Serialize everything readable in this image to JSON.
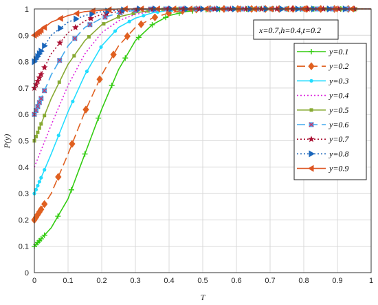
{
  "chart_data": {
    "type": "line",
    "xlabel": "T",
    "ylabel": "P(y)",
    "xlim": [
      0,
      1
    ],
    "ylim": [
      0,
      1
    ],
    "xticks": [
      "0",
      "0.1",
      "0.2",
      "0.3",
      "0.4",
      "0.5",
      "0.6",
      "0.7",
      "0.8",
      "0.9",
      "1"
    ],
    "yticks": [
      "0",
      "0.1",
      "0.2",
      "0.3",
      "0.4",
      "0.5",
      "0.6",
      "0.7",
      "0.8",
      "0.9",
      "1"
    ],
    "grid": true,
    "legend_position": "right",
    "annotation": "x=0.7,h=0.4,t=0.2",
    "series": [
      {
        "name": "y=0.1",
        "color": "#33cc11",
        "dash": "solid",
        "marker": "plus",
        "points": [
          [
            0,
            0.1
          ],
          [
            0.05,
            0.17
          ],
          [
            0.1,
            0.28
          ],
          [
            0.15,
            0.45
          ],
          [
            0.2,
            0.62
          ],
          [
            0.25,
            0.77
          ],
          [
            0.3,
            0.88
          ],
          [
            0.35,
            0.94
          ],
          [
            0.4,
            0.975
          ],
          [
            0.45,
            0.99
          ],
          [
            0.5,
            0.997
          ],
          [
            0.6,
            1
          ],
          [
            0.7,
            1
          ],
          [
            0.8,
            1
          ],
          [
            0.9,
            1
          ],
          [
            1,
            1
          ]
        ]
      },
      {
        "name": "y=0.2",
        "color": "#e06020",
        "dash": "12,6",
        "marker": "diamond",
        "points": [
          [
            0,
            0.2
          ],
          [
            0.05,
            0.3
          ],
          [
            0.1,
            0.45
          ],
          [
            0.15,
            0.61
          ],
          [
            0.2,
            0.75
          ],
          [
            0.25,
            0.86
          ],
          [
            0.3,
            0.93
          ],
          [
            0.35,
            0.965
          ],
          [
            0.4,
            0.985
          ],
          [
            0.45,
            0.995
          ],
          [
            0.5,
            1
          ],
          [
            0.6,
            1
          ],
          [
            0.7,
            1
          ],
          [
            0.8,
            1
          ],
          [
            0.9,
            1
          ],
          [
            1,
            1
          ]
        ]
      },
      {
        "name": "y=0.3",
        "color": "#22ddff",
        "dash": "solid",
        "marker": "dot",
        "points": [
          [
            0,
            0.3
          ],
          [
            0.05,
            0.45
          ],
          [
            0.1,
            0.61
          ],
          [
            0.15,
            0.75
          ],
          [
            0.2,
            0.86
          ],
          [
            0.25,
            0.93
          ],
          [
            0.3,
            0.965
          ],
          [
            0.35,
            0.985
          ],
          [
            0.4,
            0.995
          ],
          [
            0.45,
            1
          ],
          [
            0.5,
            1
          ],
          [
            0.6,
            1
          ],
          [
            0.7,
            1
          ],
          [
            0.8,
            1
          ],
          [
            0.9,
            1
          ],
          [
            1,
            1
          ]
        ]
      },
      {
        "name": "y=0.4",
        "color": "#dd22dd",
        "dash": "2,3",
        "marker": "none",
        "points": [
          [
            0,
            0.4
          ],
          [
            0.05,
            0.56
          ],
          [
            0.1,
            0.71
          ],
          [
            0.15,
            0.83
          ],
          [
            0.2,
            0.91
          ],
          [
            0.25,
            0.955
          ],
          [
            0.3,
            0.98
          ],
          [
            0.35,
            0.99
          ],
          [
            0.4,
            1
          ],
          [
            0.5,
            1
          ],
          [
            0.6,
            1
          ],
          [
            0.7,
            1
          ],
          [
            0.8,
            1
          ],
          [
            0.9,
            1
          ],
          [
            1,
            1
          ]
        ]
      },
      {
        "name": "y=0.5",
        "color": "#88aa33",
        "dash": "solid",
        "marker": "square",
        "points": [
          [
            0,
            0.5
          ],
          [
            0.05,
            0.66
          ],
          [
            0.1,
            0.79
          ],
          [
            0.15,
            0.88
          ],
          [
            0.2,
            0.94
          ],
          [
            0.25,
            0.97
          ],
          [
            0.3,
            0.985
          ],
          [
            0.35,
            0.995
          ],
          [
            0.4,
            1
          ],
          [
            0.5,
            1
          ],
          [
            0.6,
            1
          ],
          [
            0.7,
            1
          ],
          [
            0.8,
            1
          ],
          [
            0.9,
            1
          ],
          [
            1,
            1
          ]
        ]
      },
      {
        "name": "y=0.6",
        "color": "#44aaee",
        "dash": "12,6",
        "marker": "square-x",
        "points": [
          [
            0,
            0.6
          ],
          [
            0.05,
            0.75
          ],
          [
            0.1,
            0.86
          ],
          [
            0.15,
            0.93
          ],
          [
            0.2,
            0.965
          ],
          [
            0.25,
            0.985
          ],
          [
            0.3,
            0.995
          ],
          [
            0.35,
            1
          ],
          [
            0.4,
            1
          ],
          [
            0.5,
            1
          ],
          [
            0.6,
            1
          ],
          [
            0.7,
            1
          ],
          [
            0.8,
            1
          ],
          [
            0.9,
            1
          ],
          [
            1,
            1
          ]
        ]
      },
      {
        "name": "y=0.7",
        "color": "#aa1133",
        "dash": "2,3",
        "marker": "star",
        "points": [
          [
            0,
            0.7
          ],
          [
            0.05,
            0.83
          ],
          [
            0.1,
            0.91
          ],
          [
            0.15,
            0.955
          ],
          [
            0.2,
            0.98
          ],
          [
            0.25,
            0.99
          ],
          [
            0.3,
            1
          ],
          [
            0.35,
            1
          ],
          [
            0.4,
            1
          ],
          [
            0.5,
            1
          ],
          [
            0.6,
            1
          ],
          [
            0.7,
            1
          ],
          [
            0.8,
            1
          ],
          [
            0.9,
            1
          ],
          [
            1,
            1
          ]
        ]
      },
      {
        "name": "y=0.8",
        "color": "#1a66bb",
        "dash": "2,3",
        "marker": "tri-right",
        "points": [
          [
            0,
            0.8
          ],
          [
            0.05,
            0.9
          ],
          [
            0.1,
            0.95
          ],
          [
            0.15,
            0.975
          ],
          [
            0.2,
            0.99
          ],
          [
            0.25,
            0.995
          ],
          [
            0.3,
            1
          ],
          [
            0.35,
            1
          ],
          [
            0.4,
            1
          ],
          [
            0.5,
            1
          ],
          [
            0.6,
            1
          ],
          [
            0.7,
            1
          ],
          [
            0.8,
            1
          ],
          [
            0.9,
            1
          ],
          [
            1,
            1
          ]
        ]
      },
      {
        "name": "y=0.9",
        "color": "#dd5522",
        "dash": "solid",
        "marker": "tri-left",
        "points": [
          [
            0,
            0.9
          ],
          [
            0.05,
            0.95
          ],
          [
            0.1,
            0.975
          ],
          [
            0.15,
            0.99
          ],
          [
            0.2,
            0.995
          ],
          [
            0.25,
            1
          ],
          [
            0.3,
            1
          ],
          [
            0.35,
            1
          ],
          [
            0.4,
            1
          ],
          [
            0.5,
            1
          ],
          [
            0.6,
            1
          ],
          [
            0.7,
            1
          ],
          [
            0.8,
            1
          ],
          [
            0.9,
            1
          ],
          [
            1,
            1
          ]
        ]
      }
    ]
  }
}
